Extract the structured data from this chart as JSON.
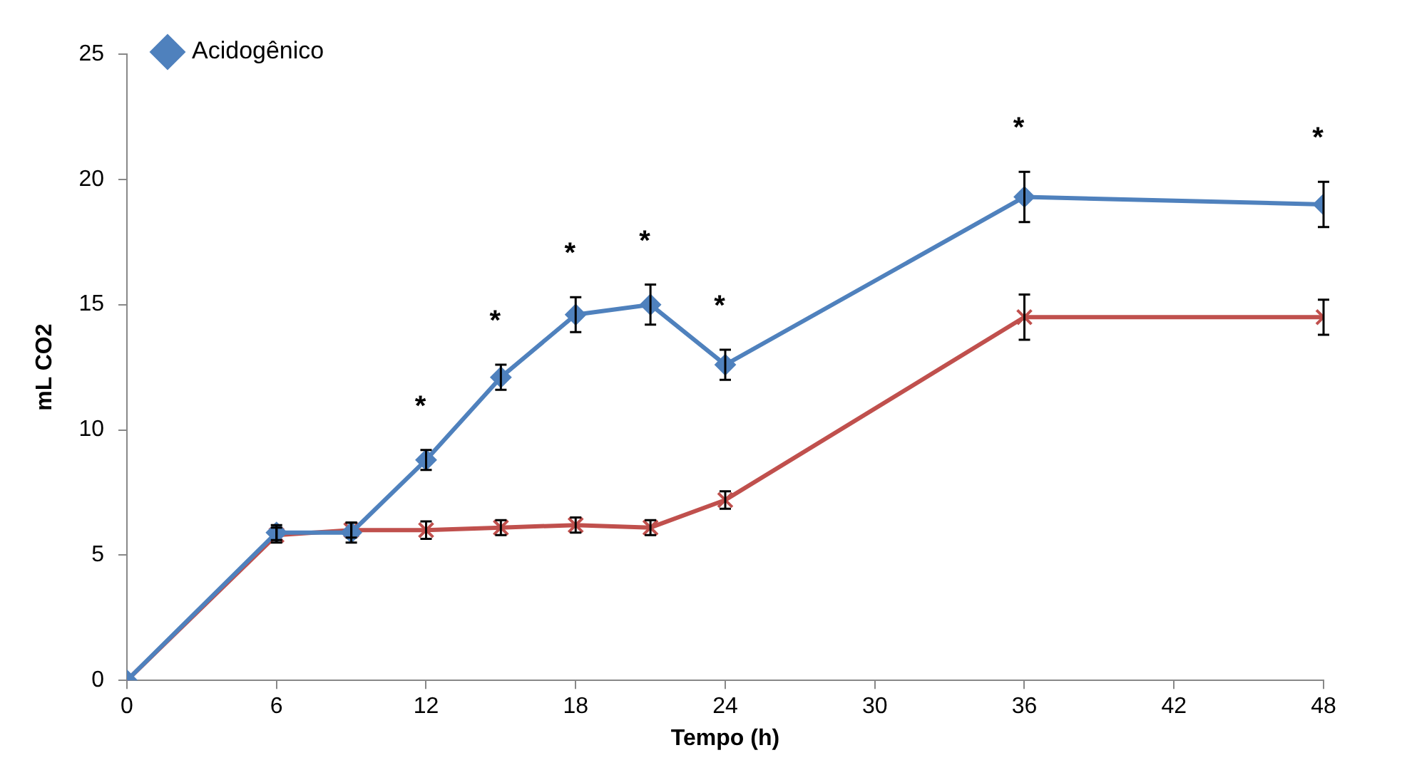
{
  "chart_data": {
    "type": "line",
    "xlabel": "Tempo (h)",
    "ylabel": "mL CO2",
    "x": [
      0,
      6,
      9,
      12,
      15,
      18,
      21,
      24,
      36,
      48
    ],
    "series": [
      {
        "name": "Acidogênico",
        "color": "#4f81bd",
        "marker": "diamond",
        "values": [
          0,
          5.9,
          5.9,
          8.8,
          12.1,
          14.6,
          15.0,
          12.6,
          19.3,
          19.0
        ],
        "errors": [
          null,
          0.3,
          0.4,
          0.4,
          0.5,
          0.7,
          0.8,
          0.6,
          1.0,
          0.9
        ]
      },
      {
        "color": "#c0504d",
        "marker": "cross",
        "values": [
          0,
          5.8,
          6.0,
          6.0,
          6.1,
          6.2,
          6.1,
          7.2,
          14.5,
          14.5
        ],
        "errors": [
          null,
          0.3,
          0.3,
          0.35,
          0.3,
          0.3,
          0.3,
          0.35,
          0.9,
          0.7
        ]
      }
    ],
    "xlim": [
      0,
      48
    ],
    "xticks": [
      0,
      6,
      12,
      18,
      24,
      30,
      36,
      42,
      48
    ],
    "ylim": [
      0,
      25
    ],
    "yticks": [
      0,
      5,
      10,
      15,
      20,
      25
    ],
    "grid": false,
    "legend": "top left",
    "line_style": "solid",
    "annotations": [
      "*",
      "*",
      "*",
      "*",
      "*",
      "*",
      "*"
    ]
  }
}
